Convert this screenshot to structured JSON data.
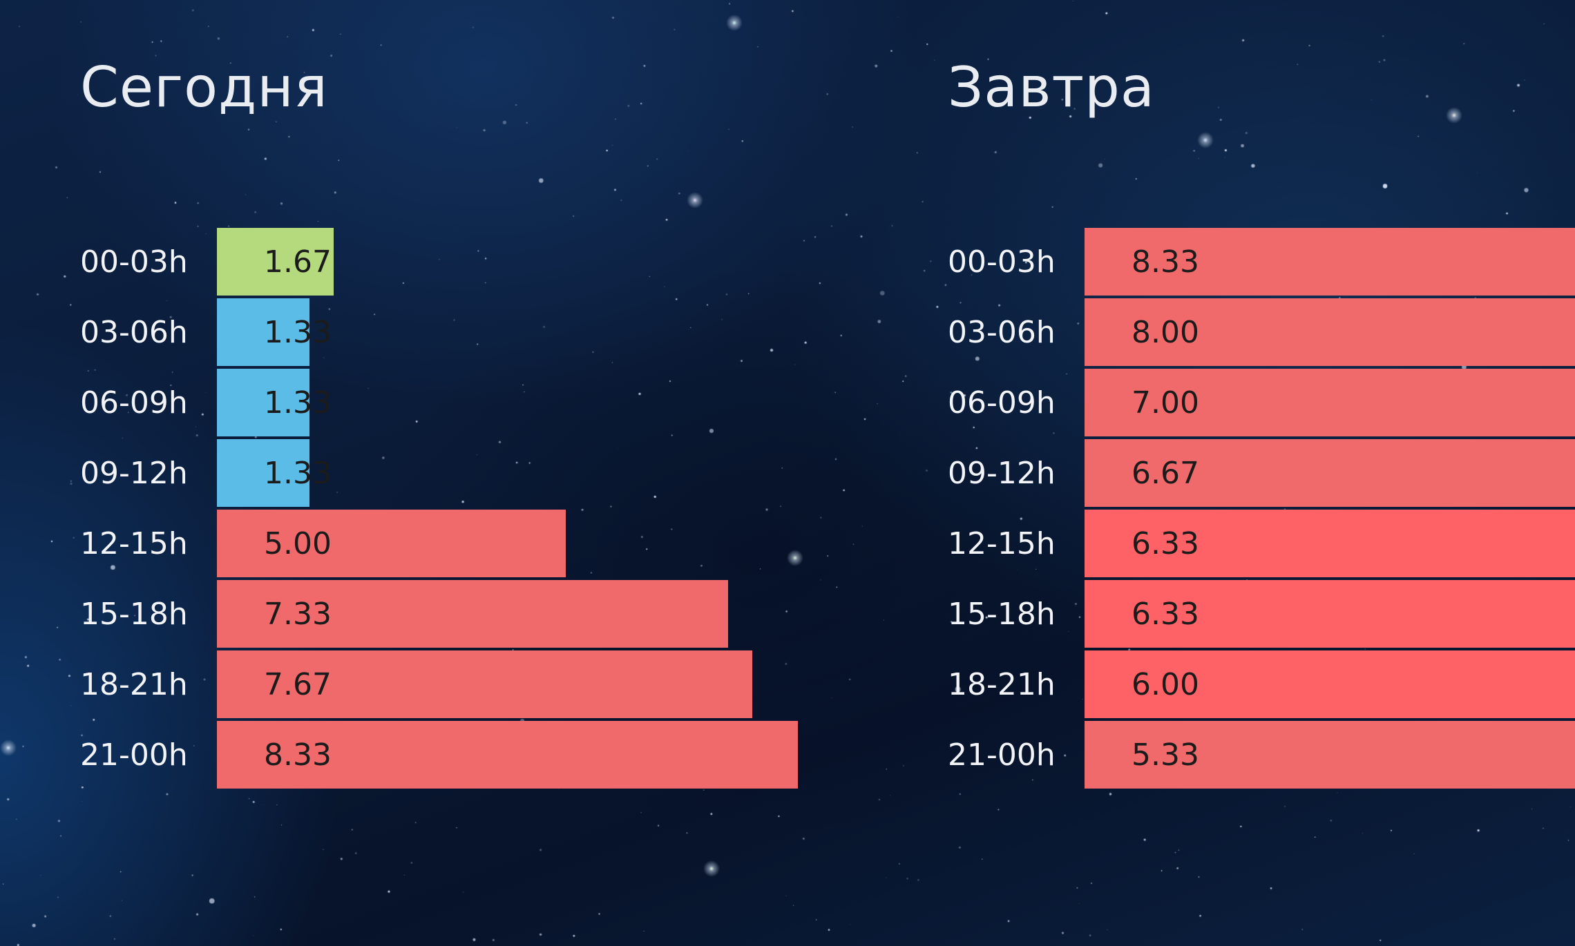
{
  "colors": {
    "green": "#b5d97d",
    "blue": "#5bbce8",
    "red": "#f06a6c",
    "red_bright": "#ff6266"
  },
  "chart_data": [
    {
      "type": "bar",
      "orientation": "horizontal",
      "title": "Сегодня",
      "categories": [
        "00-03h",
        "03-06h",
        "06-09h",
        "09-12h",
        "12-15h",
        "15-18h",
        "18-21h",
        "21-00h"
      ],
      "values": [
        1.67,
        1.33,
        1.33,
        1.33,
        5.0,
        7.33,
        7.67,
        8.33
      ],
      "labels": [
        "1.67",
        "1.33",
        "1.33",
        "1.33",
        "5.00",
        "7.33",
        "7.67",
        "8.33"
      ],
      "bar_colors": [
        "green",
        "blue",
        "blue",
        "blue",
        "red",
        "red",
        "red",
        "red"
      ],
      "xlim": [
        0,
        9
      ],
      "grid": false
    },
    {
      "type": "bar",
      "orientation": "horizontal",
      "title": "Завтра",
      "categories": [
        "00-03h",
        "03-06h",
        "06-09h",
        "09-12h",
        "12-15h",
        "15-18h",
        "18-21h",
        "21-00h"
      ],
      "values": [
        8.33,
        8.0,
        7.0,
        6.67,
        6.33,
        6.33,
        6.0,
        5.33
      ],
      "labels": [
        "8.33",
        "8.00",
        "7.00",
        "6.67",
        "6.33",
        "6.33",
        "6.00",
        "5.33"
      ],
      "bar_colors": [
        "red",
        "red",
        "red",
        "red",
        "red_bright",
        "red_bright",
        "red_bright",
        "red"
      ],
      "xlim": [
        0,
        9
      ],
      "grid": false,
      "clipped": true
    }
  ]
}
